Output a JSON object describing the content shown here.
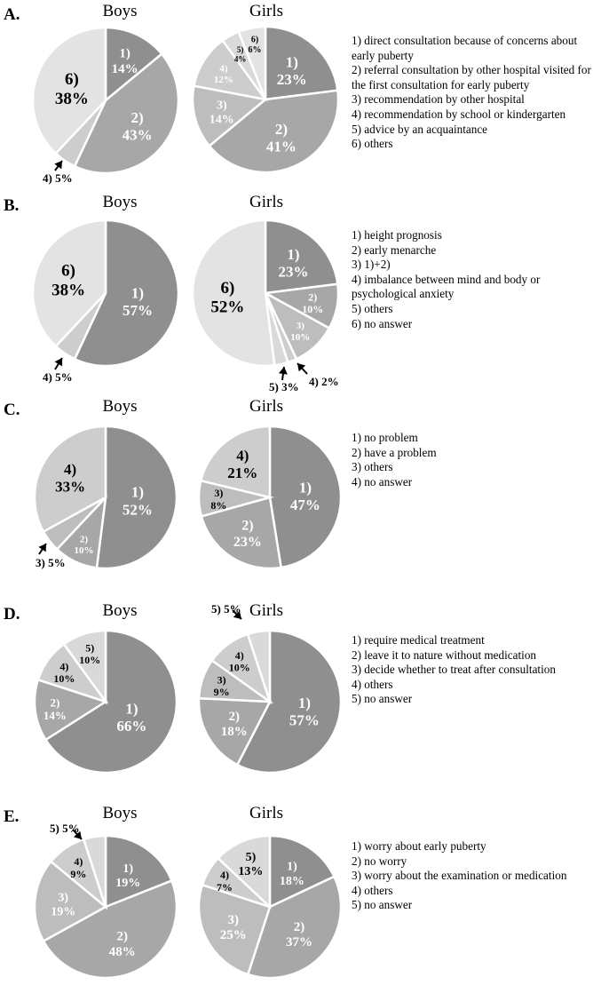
{
  "colors": {
    "c1": "#8f8f8f",
    "c2": "#a7a7a7",
    "c3": "#bdbdbd",
    "c4": "#cdcdcd",
    "c5": "#d9d9d9",
    "c6": "#e3e3e3",
    "dark_text": "#000000",
    "light_text": "#ffffff",
    "border": "#ffffff"
  },
  "panels": [
    {
      "letter": "A.",
      "legend": [
        "1) direct consultation because of concerns about early puberty",
        "2) referral consultation by other hospital visited for the first consultation for early puberty",
        "3) recommendation by other hospital",
        "4) recommendation by school or kindergarten",
        "5) advice by an acquaintance",
        "6) others"
      ]
    },
    {
      "letter": "B.",
      "legend": [
        "1) height prognosis",
        "2) early menarche",
        "3) 1)+2)",
        "4) imbalance between mind and body or psychological anxiety",
        "5) others",
        "6) no answer"
      ]
    },
    {
      "letter": "C.",
      "legend": [
        "1) no problem",
        "2) have a problem",
        "3) others",
        "4) no answer"
      ]
    },
    {
      "letter": "D.",
      "legend": [
        "1) require medical treatment",
        "2) leave it to nature without medication",
        "3) decide whether to treat after consultation",
        "4) others",
        "5) no answer"
      ]
    },
    {
      "letter": "E.",
      "legend": [
        "1) worry about early puberty",
        "2) no worry",
        "3) worry about the examination or medication",
        "4) others",
        "5) no answer"
      ]
    }
  ],
  "chart_data": [
    {
      "type": "pie",
      "panel": "A",
      "title": "Boys",
      "slices": [
        {
          "key": "1)",
          "value": 14,
          "label": "14%"
        },
        {
          "key": "2)",
          "value": 43,
          "label": "43%"
        },
        {
          "key": "4)",
          "value": 5,
          "label": "5%"
        },
        {
          "key": "6)",
          "value": 38,
          "label": "38%"
        }
      ]
    },
    {
      "type": "pie",
      "panel": "A",
      "title": "Girls",
      "slices": [
        {
          "key": "1)",
          "value": 23,
          "label": "23%"
        },
        {
          "key": "2)",
          "value": 41,
          "label": "41%"
        },
        {
          "key": "3)",
          "value": 14,
          "label": "14%"
        },
        {
          "key": "4)",
          "value": 12,
          "label": "12%"
        },
        {
          "key": "5)",
          "value": 4,
          "label": "4%"
        },
        {
          "key": "6)",
          "value": 6,
          "label": "6%"
        }
      ]
    },
    {
      "type": "pie",
      "panel": "B",
      "title": "Boys",
      "slices": [
        {
          "key": "1)",
          "value": 57,
          "label": "57%"
        },
        {
          "key": "4)",
          "value": 5,
          "label": "5%"
        },
        {
          "key": "6)",
          "value": 38,
          "label": "38%"
        }
      ]
    },
    {
      "type": "pie",
      "panel": "B",
      "title": "Girls",
      "slices": [
        {
          "key": "1)",
          "value": 23,
          "label": "23%"
        },
        {
          "key": "2)",
          "value": 10,
          "label": "10%"
        },
        {
          "key": "3)",
          "value": 10,
          "label": "10%"
        },
        {
          "key": "4)",
          "value": 2,
          "label": "2%"
        },
        {
          "key": "5)",
          "value": 3,
          "label": "3%"
        },
        {
          "key": "6)",
          "value": 52,
          "label": "52%"
        }
      ]
    },
    {
      "type": "pie",
      "panel": "C",
      "title": "Boys",
      "slices": [
        {
          "key": "1)",
          "value": 52,
          "label": "52%"
        },
        {
          "key": "2)",
          "value": 10,
          "label": "10%"
        },
        {
          "key": "3)",
          "value": 5,
          "label": "5%"
        },
        {
          "key": "4)",
          "value": 33,
          "label": "33%"
        }
      ]
    },
    {
      "type": "pie",
      "panel": "C",
      "title": "Girls",
      "slices": [
        {
          "key": "1)",
          "value": 47,
          "label": "47%"
        },
        {
          "key": "2)",
          "value": 23,
          "label": "23%"
        },
        {
          "key": "3)",
          "value": 8,
          "label": "8%"
        },
        {
          "key": "4)",
          "value": 21,
          "label": "21%"
        }
      ]
    },
    {
      "type": "pie",
      "panel": "D",
      "title": "Boys",
      "slices": [
        {
          "key": "1)",
          "value": 66,
          "label": "66%"
        },
        {
          "key": "2)",
          "value": 14,
          "label": "14%"
        },
        {
          "key": "4)",
          "value": 10,
          "label": "10%"
        },
        {
          "key": "5)",
          "value": 10,
          "label": "10%"
        }
      ]
    },
    {
      "type": "pie",
      "panel": "D",
      "title": "Girls",
      "slices": [
        {
          "key": "1)",
          "value": 57,
          "label": "57%"
        },
        {
          "key": "2)",
          "value": 18,
          "label": "18%"
        },
        {
          "key": "3)",
          "value": 9,
          "label": "9%"
        },
        {
          "key": "4)",
          "value": 10,
          "label": "10%"
        },
        {
          "key": "5)",
          "value": 5,
          "label": "5%"
        }
      ]
    },
    {
      "type": "pie",
      "panel": "E",
      "title": "Boys",
      "slices": [
        {
          "key": "1)",
          "value": 19,
          "label": "19%"
        },
        {
          "key": "2)",
          "value": 48,
          "label": "48%"
        },
        {
          "key": "3)",
          "value": 19,
          "label": "19%"
        },
        {
          "key": "4)",
          "value": 9,
          "label": "9%"
        },
        {
          "key": "5)",
          "value": 5,
          "label": "5%"
        }
      ]
    },
    {
      "type": "pie",
      "panel": "E",
      "title": "Girls",
      "slices": [
        {
          "key": "1)",
          "value": 18,
          "label": "18%"
        },
        {
          "key": "2)",
          "value": 37,
          "label": "37%"
        },
        {
          "key": "3)",
          "value": 25,
          "label": "25%"
        },
        {
          "key": "4)",
          "value": 7,
          "label": "7%"
        },
        {
          "key": "5)",
          "value": 13,
          "label": "13%"
        }
      ]
    }
  ]
}
